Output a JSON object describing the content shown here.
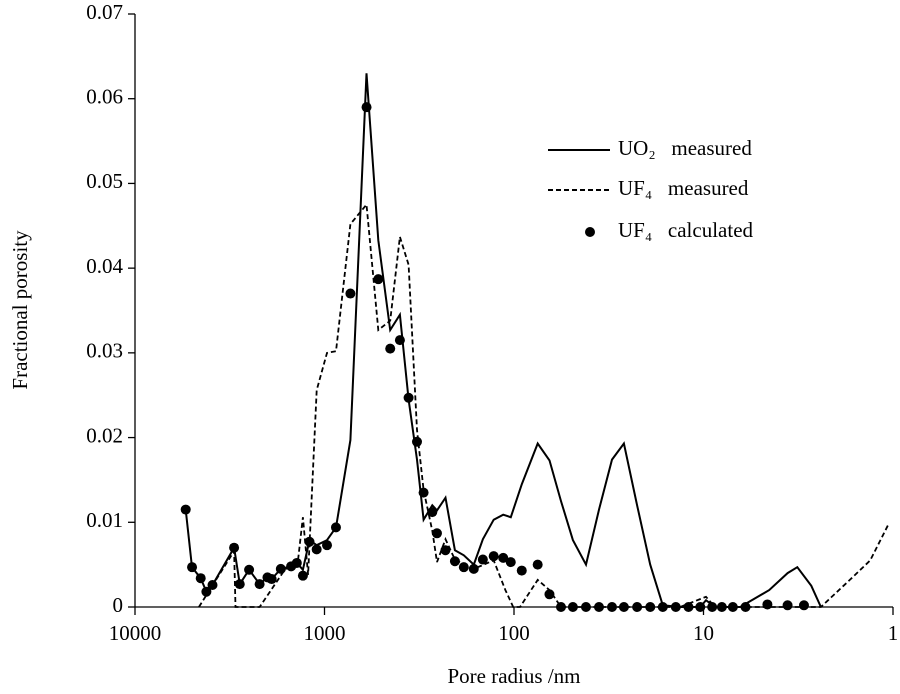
{
  "chart_data": {
    "type": "line",
    "xlabel": "Pore radius /nm",
    "ylabel": "Fractional porosity",
    "xscale": "log",
    "xlim": [
      10000,
      1
    ],
    "xticks": [
      10000,
      1000,
      100,
      10,
      1
    ],
    "ylim": [
      0,
      0.07
    ],
    "yticks": [
      0,
      0.01,
      0.02,
      0.03,
      0.04,
      0.05,
      0.06,
      0.07
    ],
    "legend": "upper right",
    "series": [
      {
        "name": "UO₂   measured",
        "style": "solid",
        "color": "#000000",
        "x": [
          5400,
          5000,
          4500,
          4200,
          3900,
          3000,
          2800,
          2500,
          2200,
          2000,
          1900,
          1700,
          1500,
          1400,
          1300,
          1200,
          1100,
          970,
          870,
          730,
          600,
          520,
          450,
          400,
          360,
          325,
          300,
          270,
          255,
          230,
          205,
          184,
          163,
          146,
          128,
          114,
          104,
          91,
          75,
          65,
          56.5,
          48.9,
          41.7,
          35.6,
          30.4,
          26.3,
          22.4,
          19.1,
          16.4,
          13.3,
          10.4,
          9.7,
          8.7,
          6.4,
          4.5,
          3.6,
          3.2,
          2.7,
          2.4
        ],
        "values": [
          0.0115,
          0.0047,
          0.0034,
          0.0018,
          0.0026,
          0.007,
          0.0027,
          0.0044,
          0.0027,
          0.0035,
          0.0033,
          0.0045,
          0.0048,
          0.0052,
          0.0044,
          0.0079,
          0.0073,
          0.0079,
          0.0094,
          0.0197,
          0.063,
          0.0433,
          0.0327,
          0.0345,
          0.0245,
          0.0174,
          0.0103,
          0.012,
          0.0114,
          0.0129,
          0.0067,
          0.0061,
          0.005,
          0.008,
          0.0103,
          0.0109,
          0.0106,
          0.0145,
          0.0193,
          0.0173,
          0.0125,
          0.0079,
          0.005,
          0.0115,
          0.0174,
          0.0193,
          0.012,
          0.005,
          0.0002,
          0,
          0,
          0.0008,
          0,
          0,
          0.002,
          0.004,
          0.0047,
          0.0025,
          0
        ]
      },
      {
        "name": "UF₄   measured",
        "style": "dashed",
        "color": "#000000",
        "x": [
          4600,
          3000,
          2950,
          2200,
          1620,
          1380,
          1300,
          1220,
          1100,
          970,
          870,
          730,
          600,
          520,
          450,
          400,
          360,
          325,
          300,
          270,
          255,
          230,
          205,
          163,
          128,
          111,
          101,
          93,
          75,
          65,
          56.5,
          13.3,
          9.7,
          8.7,
          2.4,
          1.69,
          1.32,
          1.06
        ],
        "values": [
          0,
          0.0066,
          0,
          0,
          0.0044,
          0.0055,
          0.0106,
          0.0038,
          0.0256,
          0.03,
          0.0302,
          0.0452,
          0.0475,
          0.0327,
          0.0338,
          0.0437,
          0.0404,
          0.0209,
          0.0138,
          0.009,
          0.0053,
          0.008,
          0.0056,
          0.0045,
          0.0055,
          0.002,
          0,
          0,
          0.0032,
          0.002,
          0,
          0,
          0.0012,
          0,
          0,
          0.0032,
          0.0055,
          0.0097
        ]
      },
      {
        "name": "UF₄   calculated",
        "style": "dots",
        "color": "#000000",
        "x": [
          5400,
          5000,
          4500,
          4200,
          3900,
          3000,
          2800,
          2500,
          2200,
          2000,
          1900,
          1700,
          1500,
          1400,
          1300,
          1200,
          1100,
          970,
          870,
          730,
          600,
          520,
          450,
          400,
          360,
          325,
          300,
          270,
          255,
          230,
          205,
          184,
          163,
          146,
          128,
          114,
          104,
          91,
          75,
          65,
          56.5,
          48.9,
          41.7,
          35.6,
          30.4,
          26.3,
          22.4,
          19.1,
          16.4,
          14,
          12,
          10.4,
          9,
          8,
          7,
          6,
          4.6,
          3.6,
          2.95
        ],
        "values": [
          0.0115,
          0.0047,
          0.0034,
          0.0018,
          0.0026,
          0.007,
          0.0027,
          0.0044,
          0.0027,
          0.0035,
          0.0033,
          0.0045,
          0.0048,
          0.0052,
          0.0037,
          0.0077,
          0.0068,
          0.0073,
          0.0094,
          0.037,
          0.059,
          0.0387,
          0.0305,
          0.0315,
          0.0247,
          0.0195,
          0.0135,
          0.0112,
          0.0087,
          0.0067,
          0.0054,
          0.0047,
          0.0045,
          0.0056,
          0.006,
          0.0058,
          0.0053,
          0.0043,
          0.005,
          0.0015,
          0,
          0,
          0,
          0,
          0,
          0,
          0,
          0,
          0,
          0,
          0,
          0,
          0,
          0,
          0,
          0,
          0.0003,
          0.0002,
          0.0002
        ]
      }
    ]
  }
}
